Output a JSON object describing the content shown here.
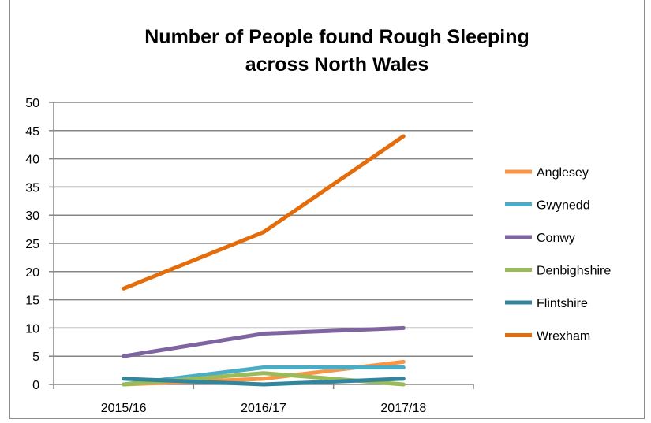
{
  "chart_data": {
    "type": "line",
    "title": [
      "Number of People found Rough Sleeping",
      "across North Wales"
    ],
    "categories": [
      "2015/16",
      "2016/17",
      "2017/18"
    ],
    "ylim": [
      0,
      50
    ],
    "yticks": [
      "0",
      "5",
      "10",
      "15",
      "20",
      "25",
      "30",
      "35",
      "40",
      "45",
      "50"
    ],
    "grid": true,
    "legend_position": "right",
    "series": [
      {
        "name": "Anglesey",
        "color": "#f79646",
        "values": [
          0,
          1,
          4
        ]
      },
      {
        "name": "Gwynedd",
        "color": "#4bacc6",
        "values": [
          0,
          3,
          3
        ]
      },
      {
        "name": "Conwy",
        "color": "#8064a2",
        "values": [
          5,
          9,
          10
        ]
      },
      {
        "name": "Denbighshire",
        "color": "#9bbb59",
        "values": [
          0,
          2,
          0
        ]
      },
      {
        "name": "Flintshire",
        "color": "#31859c",
        "values": [
          1,
          0,
          1
        ]
      },
      {
        "name": "Wrexham",
        "color": "#e46c0a",
        "values": [
          17,
          27,
          44
        ]
      }
    ]
  }
}
